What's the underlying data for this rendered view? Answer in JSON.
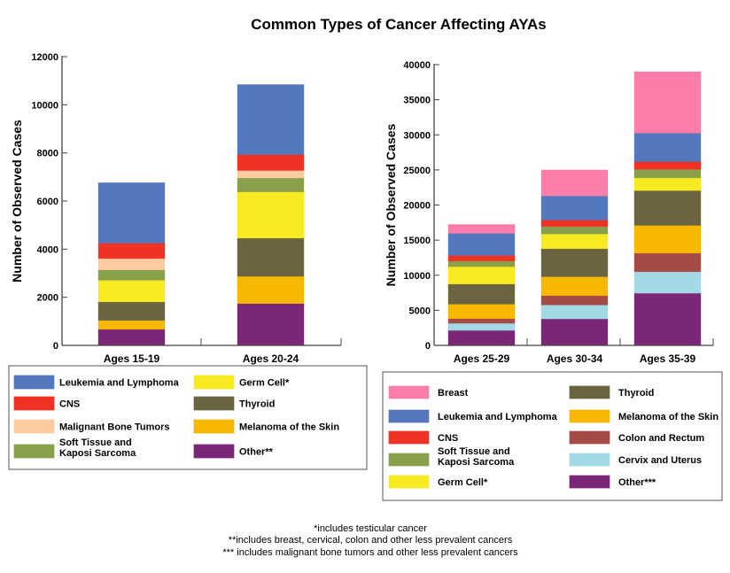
{
  "title": "Common Types of Cancer Affecting AYAs",
  "footnotes": [
    "*includes testicular cancer",
    "**includes breast, cervical, colon and other less prevalent cancers",
    "*** includes malignant bone tumors and other less prevalent cancers"
  ],
  "chart_data": [
    {
      "type": "bar",
      "stacked": true,
      "ylabel": "Number of Observed Cases",
      "ylim": [
        0,
        12000
      ],
      "yticks": [
        0,
        2000,
        4000,
        6000,
        8000,
        10000,
        12000
      ],
      "categories": [
        "Ages 15-19",
        "Ages 20-24"
      ],
      "legend_placement": "bottom",
      "series": [
        {
          "name": "Other**",
          "color": "#7a2778",
          "values": [
            670,
            1740
          ]
        },
        {
          "name": "Melanoma of the Skin",
          "color": "#f6b800",
          "values": [
            370,
            1130
          ]
        },
        {
          "name": "Thyroid",
          "color": "#6a6440",
          "values": [
            770,
            1590
          ]
        },
        {
          "name": "Germ Cell*",
          "color": "#f7ea20",
          "values": [
            900,
            1920
          ]
        },
        {
          "name": "Soft Tissue and Kaposi Sarcoma",
          "color": "#88a04a",
          "values": [
            430,
            580
          ]
        },
        {
          "name": "Malignant Bone Tumors",
          "color": "#fdcba0",
          "values": [
            470,
            310
          ]
        },
        {
          "name": "CNS",
          "color": "#ef3224",
          "values": [
            640,
            660
          ]
        },
        {
          "name": "Leukemia and Lymphoma",
          "color": "#5478be",
          "values": [
            2510,
            2910
          ]
        }
      ],
      "legend_order": [
        [
          "Leukemia and Lymphoma",
          "CNS",
          "Malignant Bone Tumors",
          "Soft Tissue and Kaposi Sarcoma"
        ],
        [
          "Germ Cell*",
          "Thyroid",
          "Melanoma of the Skin",
          "Other**"
        ]
      ]
    },
    {
      "type": "bar",
      "stacked": true,
      "ylabel": "Number of Observed Cases",
      "ylim": [
        0,
        40000
      ],
      "yticks": [
        0,
        5000,
        10000,
        15000,
        20000,
        25000,
        30000,
        35000,
        40000
      ],
      "categories": [
        "Ages 25-29",
        "Ages 30-34",
        "Ages 35-39"
      ],
      "legend_placement": "bottom",
      "series": [
        {
          "name": "Other***",
          "color": "#7a2778",
          "values": [
            2140,
            3780,
            7440
          ]
        },
        {
          "name": "Cervix and Uterus",
          "color": "#a3d8e5",
          "values": [
            1010,
            1980,
            3060
          ]
        },
        {
          "name": "Colon and Rectum",
          "color": "#a54b46",
          "values": [
            670,
            1340,
            2650
          ]
        },
        {
          "name": "Melanoma of the Skin",
          "color": "#f6b800",
          "values": [
            2060,
            2690,
            3950
          ]
        },
        {
          "name": "Thyroid",
          "color": "#6a6440",
          "values": [
            2860,
            3990,
            4960
          ]
        },
        {
          "name": "Germ Cell*",
          "color": "#f7ea20",
          "values": [
            2480,
            2100,
            1810
          ]
        },
        {
          "name": "Soft Tissue and Kaposi Sarcoma",
          "color": "#88a04a",
          "values": [
            800,
            1050,
            1210
          ]
        },
        {
          "name": "CNS",
          "color": "#ef3224",
          "values": [
            800,
            930,
            1100
          ]
        },
        {
          "name": "Leukemia and Lymphoma",
          "color": "#5478be",
          "values": [
            3150,
            3440,
            4070
          ]
        },
        {
          "name": "Breast",
          "color": "#fd7daa",
          "values": [
            1260,
            3700,
            8740
          ]
        }
      ],
      "legend_order": [
        [
          "Breast",
          "Leukemia and Lymphoma",
          "CNS",
          "Soft Tissue and Kaposi Sarcoma",
          "Germ Cell*"
        ],
        [
          "Thyroid",
          "Melanoma of the Skin",
          "Colon and Rectum",
          "Cervix and Uterus",
          "Other***"
        ]
      ]
    }
  ]
}
